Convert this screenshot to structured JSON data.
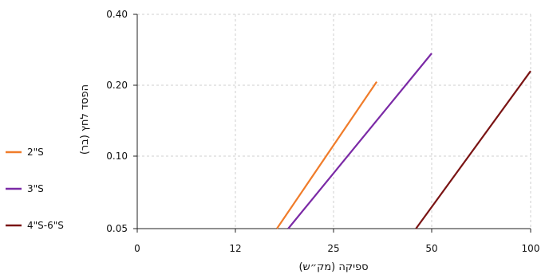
{
  "chart_data": {
    "type": "line",
    "title": "",
    "xlabel": "ספיקה (מק״ש)",
    "ylabel": "הפסד לחץ (בר)",
    "x_ticks": [
      "0",
      "12",
      "25",
      "50",
      "100"
    ],
    "y_ticks": [
      "0.40",
      "0.20",
      "0.10",
      "0.05"
    ],
    "grid": true,
    "legend_position": "left",
    "series": [
      {
        "name": "2\"S",
        "color": "#f07c2a",
        "points": [
          [
            17.5,
            0.05
          ],
          [
            36,
            0.21
          ]
        ]
      },
      {
        "name": "3\"S",
        "color": "#7b2aa6",
        "points": [
          [
            19,
            0.05
          ],
          [
            50,
            0.29
          ]
        ]
      },
      {
        "name": "4\"S-6\"S",
        "color": "#7a1414",
        "points": [
          [
            46,
            0.05
          ],
          [
            100,
            0.24
          ]
        ]
      }
    ]
  }
}
